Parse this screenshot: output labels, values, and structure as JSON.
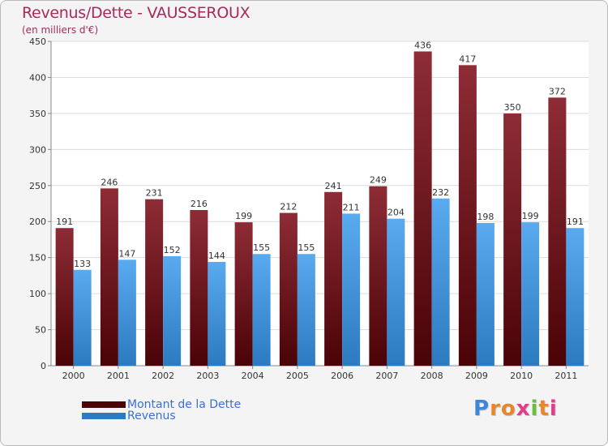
{
  "header": {
    "title": "Revenus/Dette - VAUSSEROUX",
    "subtitle": "(en milliers d'€)"
  },
  "legend": {
    "debt_label": "Montant de la Dette",
    "revenue_label": "Revenus"
  },
  "logo": {
    "text": "Proxiti",
    "letters": [
      "P",
      "r",
      "o",
      "x",
      "i",
      "t",
      "i"
    ],
    "colors": [
      "#3f86d6",
      "#e8862a",
      "#e8862a",
      "#e23c8c",
      "#6abf3a",
      "#e8862a",
      "#e23c8c"
    ]
  },
  "colors": {
    "debt_top": "#8e2c36",
    "debt_bottom": "#4a0306",
    "revenue_top": "#5aaaf0",
    "revenue_bottom": "#2c7ac0",
    "title": "#a8295a",
    "legend_text": "#3b6fd4"
  },
  "chart_data": {
    "type": "bar",
    "title": "Revenus/Dette - VAUSSEROUX",
    "ylabel": "(en milliers d'€)",
    "xlabel": "",
    "ylim": [
      0,
      450
    ],
    "yticks": [
      0,
      50,
      100,
      150,
      200,
      250,
      300,
      350,
      400,
      450
    ],
    "grid": true,
    "legend_position": "bottom-left",
    "categories": [
      "2000",
      "2001",
      "2002",
      "2003",
      "2004",
      "2005",
      "2006",
      "2007",
      "2008",
      "2009",
      "2010",
      "2011"
    ],
    "series": [
      {
        "name": "Montant de la Dette",
        "values": [
          191,
          246,
          231,
          216,
          199,
          212,
          241,
          249,
          436,
          417,
          350,
          372
        ]
      },
      {
        "name": "Revenus",
        "values": [
          133,
          147,
          152,
          144,
          155,
          155,
          211,
          204,
          232,
          198,
          199,
          191
        ]
      }
    ]
  }
}
